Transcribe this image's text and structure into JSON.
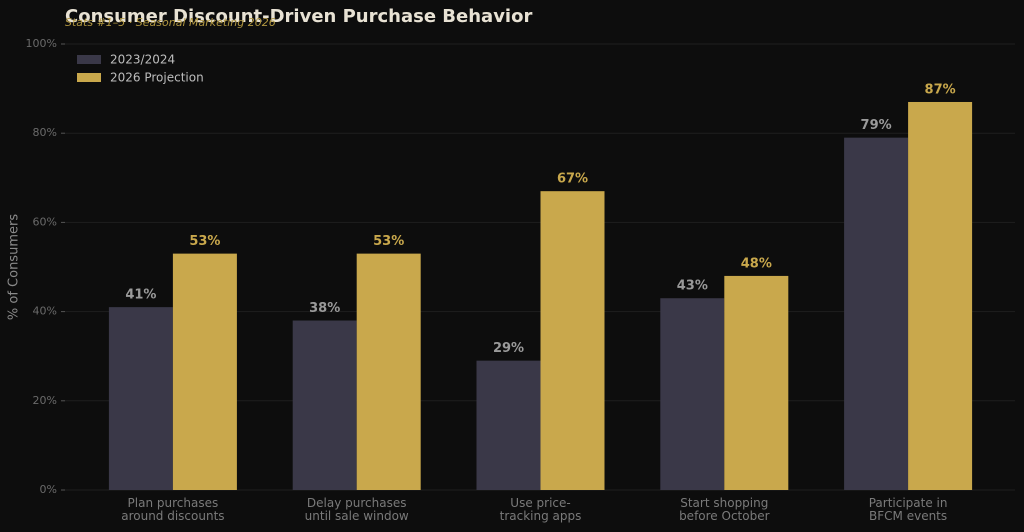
{
  "chart_data": {
    "type": "bar",
    "title": "Consumer Discount-Driven Purchase Behavior",
    "subtitle": "Stats #1–5 · Seasonal Marketing 2026",
    "y_label": "% of Consumers",
    "categories": [
      "Plan purchases\naround discounts",
      "Delay purchases\nuntil sale window",
      "Use price-\ntracking apps",
      "Start shopping\nbefore October",
      "Participate in\nBFCM events"
    ],
    "series": [
      {
        "name": "2023/2024",
        "color": "#3a3848",
        "label_color": "#9a9a9a",
        "values": [
          41,
          38,
          29,
          43,
          79
        ],
        "value_labels": [
          "41%",
          "38%",
          "29%",
          "43%",
          "79%"
        ]
      },
      {
        "name": "2026 Projection",
        "color": "#c9a84c",
        "label_color": "#c9a84c",
        "values": [
          53,
          53,
          67,
          48,
          87
        ],
        "value_labels": [
          "53%",
          "53%",
          "67%",
          "48%",
          "87%"
        ]
      }
    ],
    "ylim": [
      0,
      100
    ],
    "yticks": [
      {
        "value": 0,
        "label": "0%"
      },
      {
        "value": 20,
        "label": "20%"
      },
      {
        "value": 40,
        "label": "40%"
      },
      {
        "value": 60,
        "label": "60%"
      },
      {
        "value": 80,
        "label": "80%"
      },
      {
        "value": 100,
        "label": "100%"
      }
    ],
    "grid": true,
    "legend": "upper-left"
  }
}
